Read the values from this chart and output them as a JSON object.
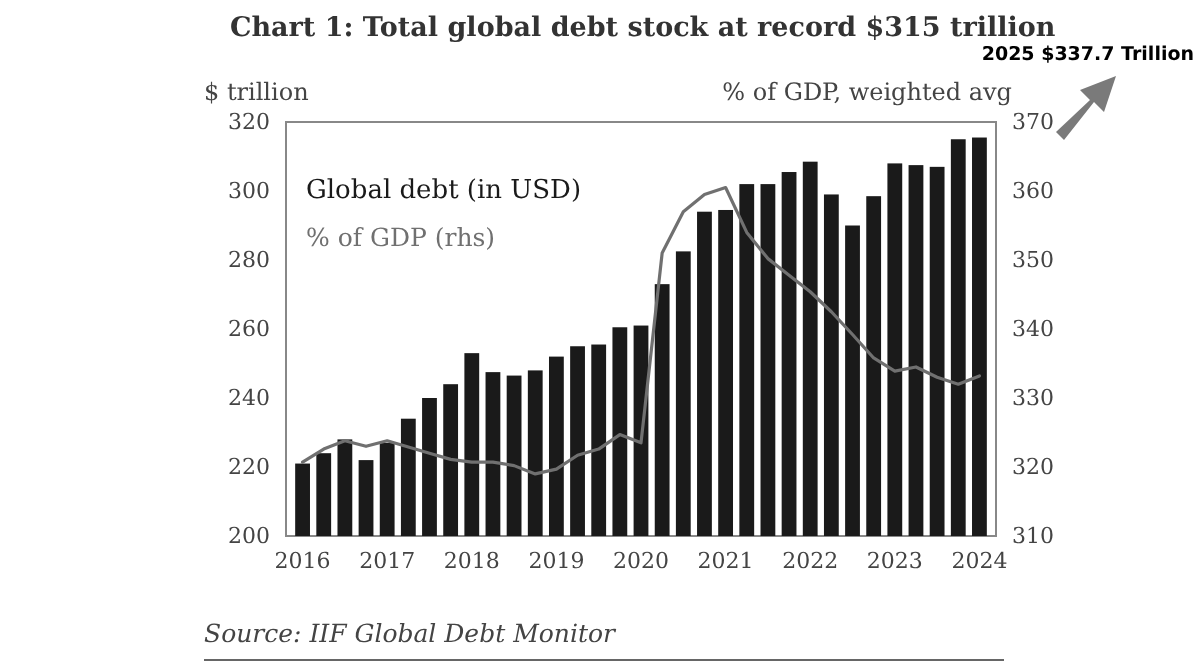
{
  "chart_data": {
    "type": "bar",
    "title": "Chart 1: Total global debt stock at record $315 trillion",
    "ylabel": "$ trillion",
    "y2label": "% of GDP, weighted avg",
    "categories": [
      "2016",
      null,
      null,
      null,
      "2017",
      null,
      null,
      null,
      "2018",
      null,
      null,
      null,
      "2019",
      null,
      null,
      null,
      "2020",
      null,
      null,
      null,
      "2021",
      null,
      null,
      null,
      "2022",
      null,
      null,
      null,
      "2023",
      null,
      null,
      null,
      "2024"
    ],
    "series": [
      {
        "name": "Global debt (in USD)",
        "color": "#1a1a1a",
        "values": [
          221,
          224,
          228,
          222,
          227,
          234,
          240,
          244,
          253,
          247.5,
          246.5,
          248,
          252,
          255,
          255.5,
          260.5,
          261,
          273,
          282.5,
          294,
          294.5,
          302,
          302,
          305.5,
          308.5,
          299,
          290,
          298.5,
          308,
          307.5,
          307,
          315,
          315.5
        ]
      },
      {
        "name": "% of GDP (rhs)",
        "type": "line",
        "axis": "y2",
        "color": "#707070",
        "values": [
          320.7,
          322.6,
          323.8,
          323,
          323.8,
          322.9,
          322,
          321.1,
          320.7,
          320.7,
          320.2,
          319,
          319.7,
          321.7,
          322.6,
          324.7,
          323.5,
          351,
          357,
          359.5,
          360.5,
          354,
          350.2,
          347.8,
          345.4,
          342.5,
          339.2,
          335.8,
          333.9,
          334.5,
          333,
          332,
          333.2
        ]
      }
    ],
    "ylim": [
      200,
      320
    ],
    "yticks": [
      200,
      220,
      240,
      260,
      280,
      300,
      320
    ],
    "y2lim": [
      310,
      370
    ],
    "y2ticks": [
      310,
      320,
      330,
      340,
      350,
      360,
      370
    ],
    "grid": false,
    "legend": "top left",
    "annotations": [
      "2025 $337.7 Trillion",
      "Source: IIF Global Debt Monitor"
    ]
  }
}
